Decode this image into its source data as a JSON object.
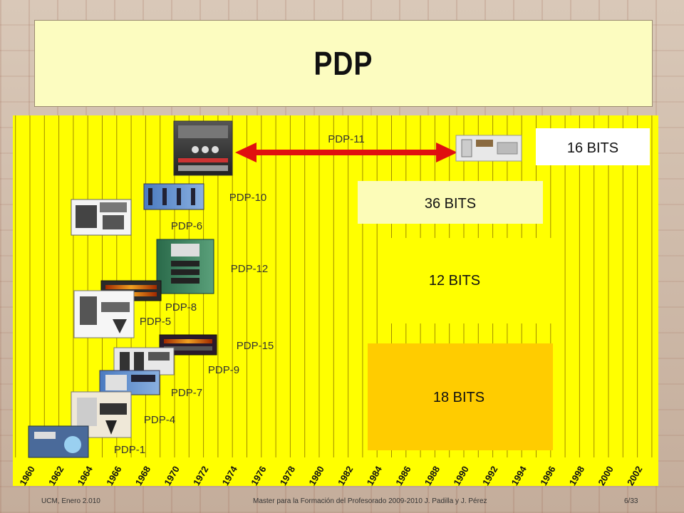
{
  "slide": {
    "title": "PDP"
  },
  "footer": {
    "left": "UCM, Enero 2.010",
    "center": "Master para la Formación del Profesorado 2009-2010 J. Padilla y J. Pérez",
    "right": "6/33"
  },
  "chart_data": {
    "type": "timeline",
    "years": [
      "1960",
      "1962",
      "1964",
      "1966",
      "1968",
      "1970",
      "1972",
      "1974",
      "1976",
      "1978",
      "1980",
      "1982",
      "1984",
      "1986",
      "1988",
      "1990",
      "1992",
      "1994",
      "1996",
      "1998",
      "2000",
      "2002"
    ],
    "word_size_groups": [
      {
        "label": "16 BITS",
        "color": "#ffffff"
      },
      {
        "label": "36 BITS",
        "color": "#fcfcb8"
      },
      {
        "label": "12 BITS",
        "color": "#ffff00"
      },
      {
        "label": "18 BITS",
        "color": "#ffcc00"
      }
    ],
    "models": [
      {
        "label": "PDP-11",
        "year": 1970
      },
      {
        "label": "PDP-10",
        "year": 1966
      },
      {
        "label": "PDP-6",
        "year": 1964
      },
      {
        "label": "PDP-12",
        "year": 1969
      },
      {
        "label": "PDP-8",
        "year": 1965
      },
      {
        "label": "PDP-5",
        "year": 1963
      },
      {
        "label": "PDP-15",
        "year": 1970
      },
      {
        "label": "PDP-9",
        "year": 1966
      },
      {
        "label": "PDP-7",
        "year": 1964
      },
      {
        "label": "PDP-4",
        "year": 1962
      },
      {
        "label": "PDP-1",
        "year": 1959
      }
    ],
    "colors": {
      "background": "#ffff00",
      "gridline": "#a08c00",
      "arrow": "#e01010"
    }
  }
}
